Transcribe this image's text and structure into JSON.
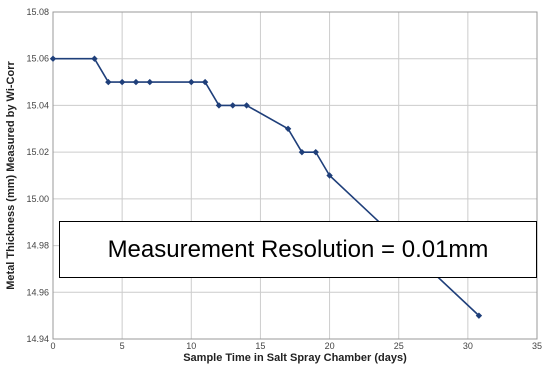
{
  "chart_data": {
    "type": "line",
    "xlabel": "Sample Time in Salt Spray Chamber (days)",
    "ylabel": "Metal Thickness (mm) Measured by Wi-Corr",
    "xlim": [
      0,
      35
    ],
    "ylim": [
      14.94,
      15.08
    ],
    "x_ticks": [
      "0",
      "5",
      "10",
      "15",
      "20",
      "25",
      "30",
      "35"
    ],
    "y_ticks": [
      "14.94",
      "14.96",
      "14.98",
      "15.00",
      "15.02",
      "15.04",
      "15.06",
      "15.08"
    ],
    "grid": true,
    "series": [
      {
        "color": "#1f3f7a",
        "marker": "diamond",
        "x": [
          0,
          3,
          4,
          5,
          6,
          7,
          10,
          11,
          12,
          13,
          14,
          17,
          18,
          19,
          20,
          30.8
        ],
        "y": [
          15.06,
          15.06,
          15.05,
          15.05,
          15.05,
          15.05,
          15.05,
          15.05,
          15.04,
          15.04,
          15.04,
          15.03,
          15.02,
          15.02,
          15.01,
          14.95
        ]
      }
    ],
    "annotation": "Measurement Resolution = 0.01mm"
  }
}
